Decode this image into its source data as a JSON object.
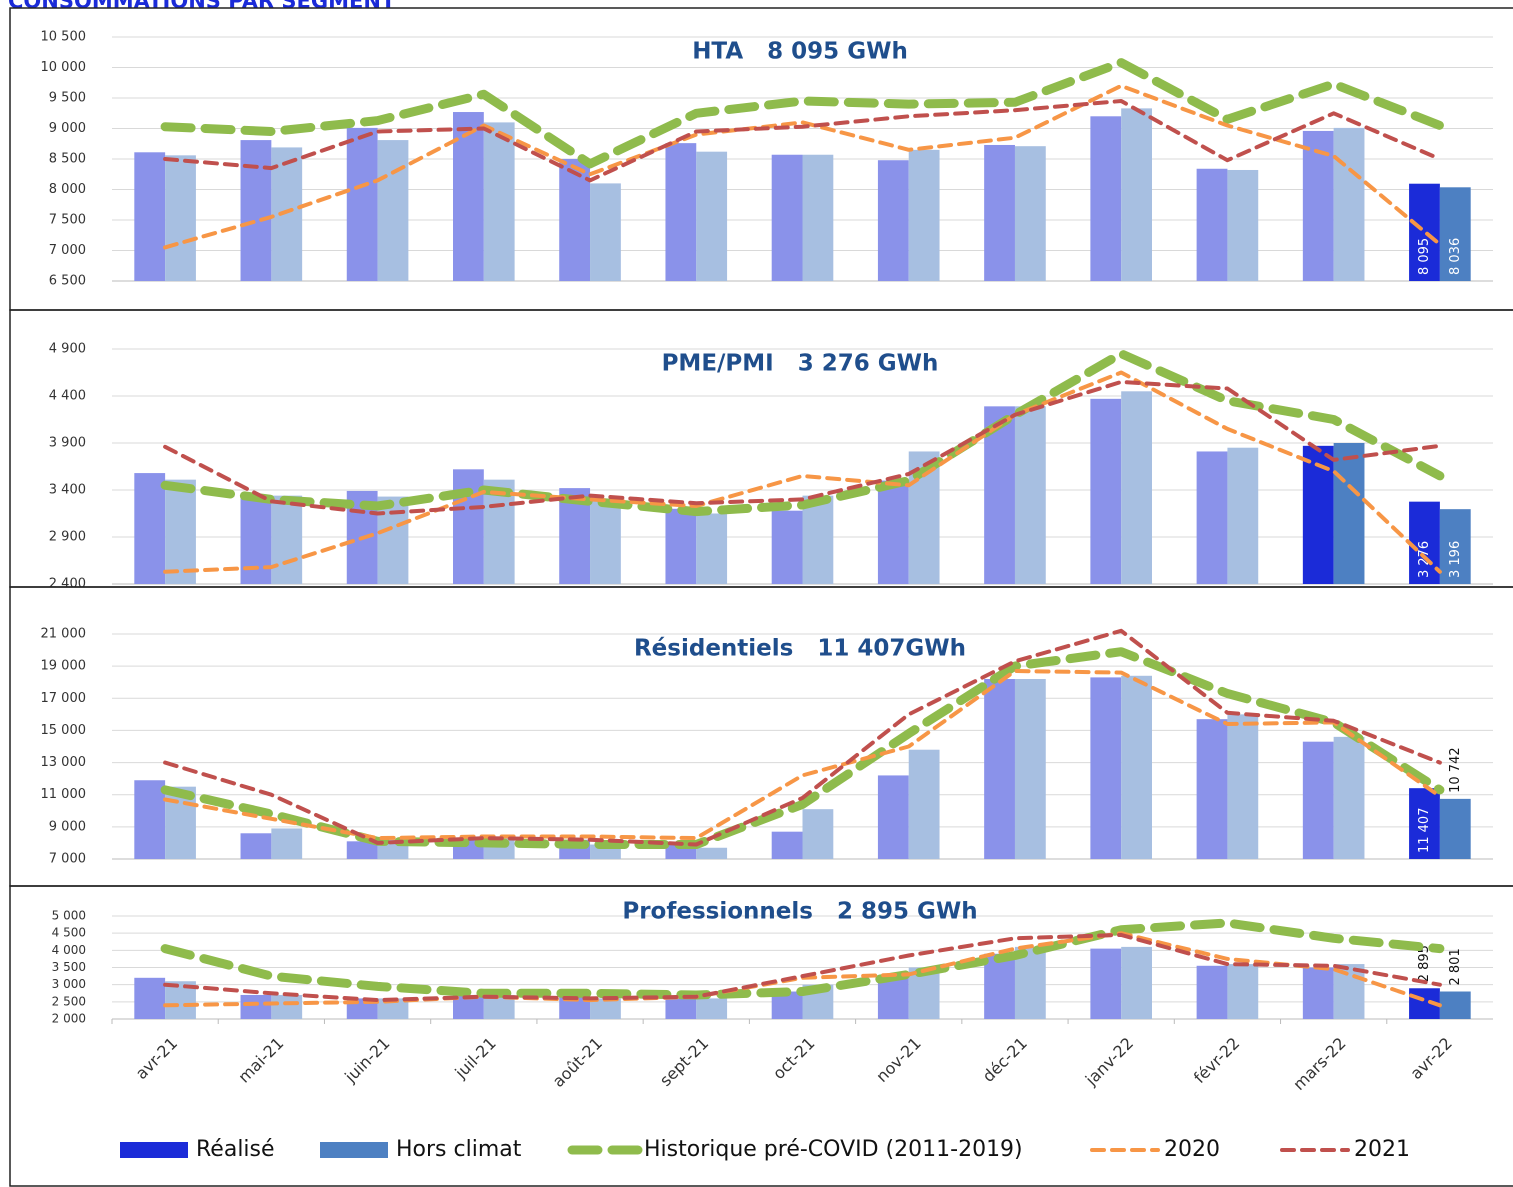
{
  "title": "CONSOMMATIONS PAR SEGMENT",
  "categories": [
    "avr-21",
    "mai-21",
    "juin-21",
    "juil-21",
    "août-21",
    "sept-21",
    "oct-21",
    "nov-21",
    "déc-21",
    "janv-22",
    "févr-22",
    "mars-22",
    "avr-22"
  ],
  "legend": [
    {
      "name": "Réalisé",
      "kind": "bar",
      "color": "#8a92ea",
      "highlight_color": "#1b2bd8"
    },
    {
      "name": "Hors climat",
      "kind": "bar",
      "color": "#a7bfe1",
      "highlight_color": "#4d80c2"
    },
    {
      "name": "Historique pré-COVID (2011-2019)",
      "kind": "line",
      "color": "#8fbb4c",
      "width": 9,
      "dash": "26 14"
    },
    {
      "name": "2020",
      "kind": "line",
      "color": "#f79646",
      "width": 4,
      "dash": "12 8"
    },
    {
      "name": "2021",
      "kind": "line",
      "color": "#c0504d",
      "width": 4,
      "dash": "12 8"
    }
  ],
  "chart_data": [
    {
      "type": "bar",
      "title": "HTA   8 095 GWh",
      "highlight": [
        12
      ],
      "ylim": [
        6500,
        10500
      ],
      "yticks": [
        {
          "value": 6500,
          "label": "6 500"
        },
        {
          "value": 7000,
          "label": "7 000"
        },
        {
          "value": 7500,
          "label": "7 500"
        },
        {
          "value": 8000,
          "label": "8 000"
        },
        {
          "value": 8500,
          "label": "8 500"
        },
        {
          "value": 9000,
          "label": "9 000"
        },
        {
          "value": 9500,
          "label": "9 500"
        },
        {
          "value": 10000,
          "label": "10 000"
        },
        {
          "value": 10500,
          "label": "10 500"
        }
      ],
      "series": [
        {
          "values": [
            8610,
            8810,
            9010,
            9270,
            8500,
            8760,
            8570,
            8480,
            8730,
            9200,
            8340,
            8960,
            8095
          ],
          "value_labels": {
            "12": "8 095"
          }
        },
        {
          "values": [
            8560,
            8690,
            8810,
            9100,
            8100,
            8620,
            8570,
            8650,
            8710,
            9330,
            8320,
            9010,
            8036
          ],
          "value_labels": {
            "12": "8 036"
          }
        },
        {
          "values": [
            9030,
            8950,
            9130,
            9560,
            8420,
            9250,
            9450,
            9400,
            9430,
            10080,
            9150,
            9730,
            9050
          ]
        },
        {
          "values": [
            7050,
            7550,
            8150,
            9050,
            8250,
            8900,
            9100,
            8650,
            8850,
            9700,
            9050,
            8550,
            7100
          ]
        },
        {
          "values": [
            8500,
            8350,
            8950,
            9000,
            8150,
            8950,
            9030,
            9200,
            9300,
            9450,
            8480,
            9250,
            8500
          ]
        }
      ]
    },
    {
      "type": "bar",
      "title": "PME/PMI   3 276 GWh",
      "highlight": [
        11,
        12
      ],
      "ylim": [
        2400,
        4900
      ],
      "yticks": [
        {
          "value": 2400,
          "label": "2 400"
        },
        {
          "value": 2900,
          "label": "2 900"
        },
        {
          "value": 3400,
          "label": "3 400"
        },
        {
          "value": 3900,
          "label": "3 900"
        },
        {
          "value": 4400,
          "label": "4 400"
        },
        {
          "value": 4900,
          "label": "4 900"
        }
      ],
      "series": [
        {
          "values": [
            3580,
            3340,
            3390,
            3620,
            3420,
            3200,
            3180,
            3500,
            4290,
            4370,
            3810,
            3870,
            3276
          ],
          "value_labels": {
            "12": "3 276"
          }
        },
        {
          "values": [
            3510,
            3340,
            3330,
            3510,
            3310,
            3150,
            3340,
            3810,
            4290,
            4450,
            3850,
            3900,
            3196
          ],
          "value_labels": {
            "12": "3 196"
          }
        },
        {
          "values": [
            3450,
            3300,
            3230,
            3400,
            3280,
            3170,
            3240,
            3500,
            4200,
            4850,
            4350,
            4150,
            3550
          ]
        },
        {
          "values": [
            2530,
            2580,
            2940,
            3380,
            3300,
            3230,
            3550,
            3450,
            4200,
            4650,
            4050,
            3600,
            2530
          ]
        },
        {
          "values": [
            3860,
            3280,
            3150,
            3220,
            3340,
            3260,
            3300,
            3570,
            4200,
            4550,
            4480,
            3720,
            3870
          ]
        }
      ]
    },
    {
      "type": "bar",
      "title": "Résidentiels   11 407GWh",
      "highlight": [
        12
      ],
      "ylim": [
        7000,
        21000
      ],
      "yticks": [
        {
          "value": 7000,
          "label": "7 000"
        },
        {
          "value": 9000,
          "label": "9 000"
        },
        {
          "value": 11000,
          "label": "11 000"
        },
        {
          "value": 13000,
          "label": "13 000"
        },
        {
          "value": 15000,
          "label": "15 000"
        },
        {
          "value": 17000,
          "label": "17 000"
        },
        {
          "value": 19000,
          "label": "19 000"
        },
        {
          "value": 21000,
          "label": "21 000"
        }
      ],
      "series": [
        {
          "values": [
            11900,
            8600,
            8100,
            8300,
            8200,
            8000,
            8700,
            12200,
            18200,
            18300,
            15700,
            14300,
            11407
          ],
          "value_labels": {
            "12": "11 407"
          }
        },
        {
          "values": [
            11500,
            8900,
            8200,
            8300,
            7900,
            7700,
            10100,
            13800,
            18200,
            18400,
            16000,
            14600,
            10742
          ],
          "value_labels": {
            "12": "10 742"
          }
        },
        {
          "values": [
            11300,
            9800,
            8100,
            8000,
            7900,
            7900,
            10400,
            14800,
            19000,
            19900,
            17300,
            15500,
            11300
          ]
        },
        {
          "values": [
            10700,
            9500,
            8300,
            8400,
            8400,
            8300,
            12200,
            14000,
            18700,
            18600,
            15400,
            15500,
            10900
          ]
        },
        {
          "values": [
            13000,
            11000,
            8000,
            8300,
            8200,
            7900,
            10800,
            16000,
            19300,
            21200,
            16100,
            15600,
            13000
          ]
        }
      ]
    },
    {
      "type": "bar",
      "title": "Professionnels   2 895 GWh",
      "highlight": [
        12
      ],
      "ylim": [
        2000,
        5000
      ],
      "yticks": [
        {
          "value": 2000,
          "label": "2 000"
        },
        {
          "value": 2500,
          "label": "2 500"
        },
        {
          "value": 3000,
          "label": "3 000"
        },
        {
          "value": 3500,
          "label": "3 500"
        },
        {
          "value": 4000,
          "label": "4 000"
        },
        {
          "value": 4500,
          "label": "4 500"
        },
        {
          "value": 5000,
          "label": "5 000"
        }
      ],
      "series": [
        {
          "values": [
            3200,
            2700,
            2600,
            2700,
            2700,
            2600,
            2800,
            3200,
            3900,
            4050,
            3550,
            3500,
            2895
          ],
          "value_labels": {
            "12": "2 895"
          }
        },
        {
          "values": [
            3100,
            2700,
            2600,
            2700,
            2600,
            2600,
            3000,
            3500,
            4100,
            4100,
            3600,
            3600,
            2801
          ],
          "value_labels": {
            "12": "2 801"
          }
        },
        {
          "values": [
            4050,
            3250,
            2950,
            2750,
            2750,
            2700,
            2800,
            3300,
            3850,
            4600,
            4800,
            4350,
            4050
          ]
        },
        {
          "values": [
            2400,
            2450,
            2500,
            2650,
            2550,
            2650,
            3200,
            3300,
            4050,
            4500,
            3750,
            3450,
            2400
          ]
        },
        {
          "values": [
            3000,
            2750,
            2550,
            2650,
            2600,
            2650,
            3250,
            3850,
            4350,
            4450,
            3600,
            3550,
            3000
          ]
        }
      ]
    }
  ]
}
